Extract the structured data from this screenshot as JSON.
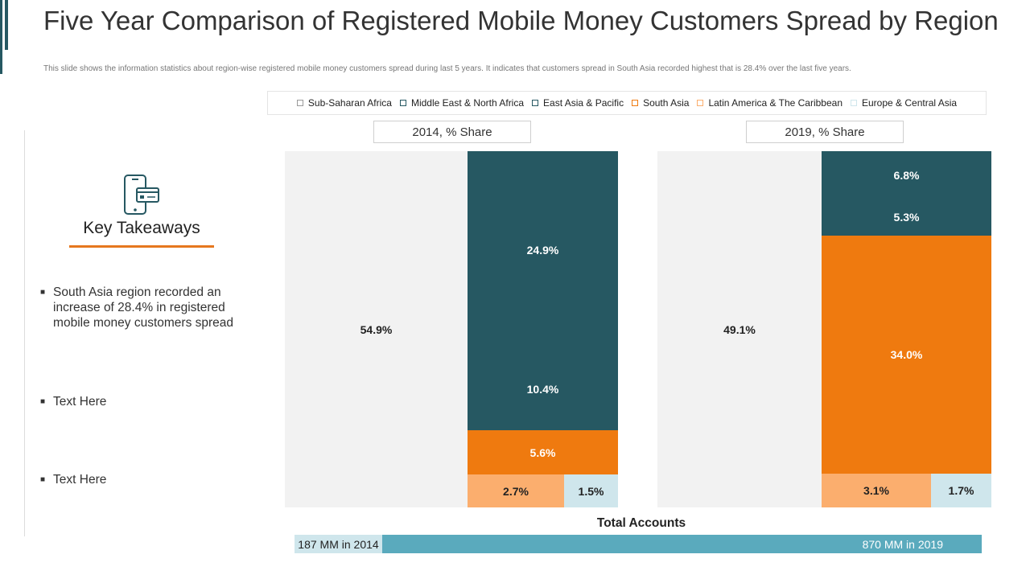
{
  "page": {
    "title": "Five Year Comparison of Registered Mobile Money Customers Spread by Region",
    "subtitle": "This slide shows the information statistics about region-wise registered mobile money customers spread during last 5 years. It indicates that customers spread in South Asia recorded highest that is 28.4% over the last five years."
  },
  "colors": {
    "sub_saharan_africa": "#f2f2f2",
    "middle_east_north_africa": "#265862",
    "east_asia_pacific": "#265862",
    "south_asia": "#ef7a0f",
    "latin_america_caribbean": "#fbae6e",
    "europe_central_asia": "#cfe6ec",
    "accent": "#e6771e"
  },
  "legend": [
    {
      "label": "Sub-Saharan Africa",
      "color": "#f2f2f2"
    },
    {
      "label": "Middle East & North Africa",
      "color": "#265862"
    },
    {
      "label": "East Asia & Pacific",
      "color": "#265862"
    },
    {
      "label": "South Asia",
      "color": "#ef7a0f"
    },
    {
      "label": "Latin America & The Caribbean",
      "color": "#fbae6e"
    },
    {
      "label": "Europe & Central Asia",
      "color": "#cfe6ec"
    }
  ],
  "chart_data": [
    {
      "type": "treemap",
      "title": "2014,  % Share",
      "segments": [
        {
          "region": "Sub-Saharan Africa",
          "value": 54.9,
          "label": "54.9%"
        },
        {
          "region": "Middle East & North Africa",
          "value": 24.9,
          "label": "24.9%"
        },
        {
          "region": "East Asia & Pacific",
          "value": 10.4,
          "label": "10.4%"
        },
        {
          "region": "South Asia",
          "value": 5.6,
          "label": "5.6%"
        },
        {
          "region": "Latin America & The Caribbean",
          "value": 2.7,
          "label": "2.7%"
        },
        {
          "region": "Europe & Central Asia",
          "value": 1.5,
          "label": "1.5%"
        }
      ]
    },
    {
      "type": "treemap",
      "title": "2019,  % Share",
      "segments": [
        {
          "region": "Sub-Saharan Africa",
          "value": 49.1,
          "label": "49.1%"
        },
        {
          "region": "Middle East & North Africa",
          "value": 6.8,
          "label": "6.8%"
        },
        {
          "region": "East Asia & Pacific",
          "value": 5.3,
          "label": "5.3%"
        },
        {
          "region": "South Asia",
          "value": 34.0,
          "label": "34.0%"
        },
        {
          "region": "Latin America & The Caribbean",
          "value": 3.1,
          "label": "3.1%"
        },
        {
          "region": "Europe & Central Asia",
          "value": 1.7,
          "label": "1.7%"
        }
      ]
    }
  ],
  "takeaways": {
    "title": "Key Takeaways",
    "bullets": [
      "South Asia region recorded an increase of 28.4% in registered mobile money customers spread",
      "Text Here",
      "Text Here"
    ]
  },
  "totals": {
    "title": "Total Accounts",
    "value_2014": 187,
    "value_2019": 870,
    "label_2014": "187 MM  in 2014",
    "label_2019": "870 MM  in 2019"
  }
}
